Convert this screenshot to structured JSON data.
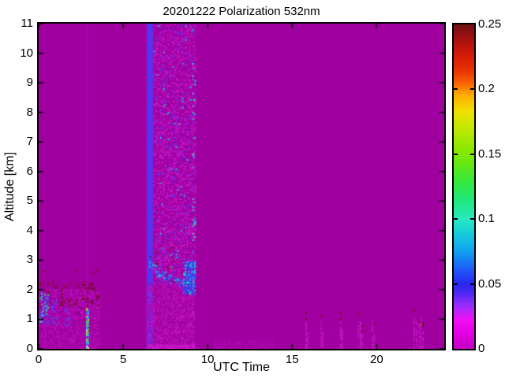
{
  "chart_data": {
    "type": "heatmap",
    "title": "20201222 Polarization 532nm",
    "xlabel": "UTC Time",
    "ylabel": "Altitude [km]",
    "x_range": [
      0,
      24
    ],
    "y_range": [
      0,
      11
    ],
    "x_tick_values": [
      0,
      5,
      10,
      15,
      20
    ],
    "x_tick_labels": [
      "0",
      "5",
      "10",
      "15",
      "20"
    ],
    "y_tick_values": [
      0,
      1,
      2,
      3,
      4,
      5,
      6,
      7,
      8,
      9,
      10,
      11
    ],
    "y_tick_labels": [
      "0",
      "1",
      "2",
      "3",
      "4",
      "5",
      "6",
      "7",
      "8",
      "9",
      "10",
      "11"
    ],
    "grid": false,
    "background_color": "#A000A0",
    "colorbar": {
      "range": [
        0,
        0.25
      ],
      "tick_values": [
        0,
        0.05,
        0.1,
        0.15,
        0.2,
        0.25
      ],
      "tick_labels": [
        "0",
        "0.05",
        "0.1",
        "0.15",
        "0.2",
        "0.25"
      ],
      "inner_tick_values": [
        0.05,
        0.1,
        0.15,
        0.2
      ],
      "stops": [
        [
          0.0,
          "#C400C4"
        ],
        [
          0.05,
          "#E400E4"
        ],
        [
          0.09,
          "#EE10F2"
        ],
        [
          0.13,
          "#A02CFC"
        ],
        [
          0.17,
          "#5028F4"
        ],
        [
          0.2,
          "#2828F0"
        ],
        [
          0.24,
          "#2054F8"
        ],
        [
          0.3,
          "#10A0F0"
        ],
        [
          0.36,
          "#18D0D8"
        ],
        [
          0.4,
          "#28E8C0"
        ],
        [
          0.46,
          "#20E878"
        ],
        [
          0.52,
          "#38E838"
        ],
        [
          0.6,
          "#80E800"
        ],
        [
          0.68,
          "#C0E800"
        ],
        [
          0.73,
          "#F0E000"
        ],
        [
          0.78,
          "#FFB000"
        ],
        [
          0.82,
          "#F86000"
        ],
        [
          0.86,
          "#E83000"
        ],
        [
          0.91,
          "#D01808"
        ],
        [
          0.96,
          "#A01010"
        ],
        [
          1.0,
          "#6E1212"
        ]
      ]
    },
    "features": [
      {
        "kind": "fill",
        "x": [
          0,
          24
        ],
        "y": [
          0,
          11
        ],
        "color": "#A000A0"
      },
      {
        "kind": "vband",
        "x": [
          2.79,
          2.85
        ],
        "y": [
          0,
          11
        ],
        "color": "#AE06AE"
      },
      {
        "kind": "vband",
        "x": [
          2.9,
          2.96
        ],
        "y": [
          0,
          11
        ],
        "color": "#AA04AA"
      },
      {
        "kind": "vband",
        "x": [
          2.33,
          2.4
        ],
        "y": [
          0,
          1.95
        ],
        "color": "#8E008E"
      },
      {
        "kind": "vband",
        "x": [
          2.47,
          2.52
        ],
        "y": [
          0,
          1.95
        ],
        "color": "#920092"
      },
      {
        "kind": "vband",
        "x": [
          5.86,
          5.91
        ],
        "y": [
          0,
          1.5
        ],
        "color": "#940094"
      },
      {
        "kind": "vband",
        "x": [
          5.98,
          6.02
        ],
        "y": [
          0,
          1.5
        ],
        "color": "#940094"
      },
      {
        "kind": "speckle",
        "x": [
          0.02,
          3.62
        ],
        "y": [
          0,
          2.02
        ],
        "density": 0.85,
        "cell": 2,
        "palette": [
          [
            "#AA06AA",
            0.45
          ],
          [
            "#B40CB4",
            0.3
          ],
          [
            "#9A029A",
            0.15
          ],
          [
            "#C014C0",
            0.1
          ]
        ]
      },
      {
        "kind": "speckle",
        "x": [
          0.05,
          3.58
        ],
        "y": [
          1.45,
          2.3
        ],
        "density": 0.1,
        "cell": 2,
        "palette": [
          [
            "#6E1010",
            0.6
          ],
          [
            "#8A1212",
            0.4
          ]
        ]
      },
      {
        "kind": "speckle",
        "x": [
          0.3,
          3.5
        ],
        "y": [
          2.3,
          2.7
        ],
        "density": 0.015,
        "cell": 2,
        "palette": [
          [
            "#6E1010",
            1
          ]
        ]
      },
      {
        "kind": "speckle",
        "x": [
          0.05,
          0.55
        ],
        "y": [
          0.85,
          1.9
        ],
        "density": 0.5,
        "cell": 2,
        "palette": [
          [
            "#5838F0",
            0.35
          ],
          [
            "#7C28E0",
            0.3
          ],
          [
            "#28C0D8",
            0.2
          ],
          [
            "#30E070",
            0.15
          ]
        ]
      },
      {
        "kind": "speckle",
        "x": [
          0.75,
          1.12
        ],
        "y": [
          0.8,
          1.65
        ],
        "density": 0.45,
        "cell": 2,
        "palette": [
          [
            "#6C30E8",
            0.5
          ],
          [
            "#9018D0",
            0.35
          ],
          [
            "#3858F0",
            0.15
          ]
        ]
      },
      {
        "kind": "speckle",
        "x": [
          1.5,
          1.8
        ],
        "y": [
          0.8,
          1.35
        ],
        "density": 0.3,
        "cell": 2,
        "palette": [
          [
            "#8822D8",
            0.6
          ],
          [
            "#5840F0",
            0.4
          ]
        ]
      },
      {
        "kind": "speckle",
        "x": [
          2.8,
          2.94
        ],
        "y": [
          0.02,
          1.38
        ],
        "density": 0.92,
        "cell": 2,
        "palette": [
          [
            "#14E0C8",
            0.28
          ],
          [
            "#3CE43C",
            0.22
          ],
          [
            "#E8E800",
            0.12
          ],
          [
            "#2496F8",
            0.2
          ],
          [
            "#B81CE8",
            0.1
          ],
          [
            "#F0F0F0",
            0.02
          ],
          [
            "#C814C8",
            0.04
          ]
        ]
      },
      {
        "kind": "streaks",
        "x": [
          6.35,
          6.8
        ],
        "y": [
          0,
          11
        ],
        "count": 16,
        "width": 2,
        "palette": [
          [
            "#4040F8",
            0.45
          ],
          [
            "#6C2CE8",
            0.3
          ],
          [
            "#9718D8",
            0.25
          ]
        ]
      },
      {
        "kind": "speckle",
        "x": [
          6.8,
          9.25
        ],
        "y": [
          2.15,
          11
        ],
        "density": 0.55,
        "cell": 2,
        "palette": [
          [
            "#B008B0",
            0.35
          ],
          [
            "#BC12BC",
            0.25
          ],
          [
            "#C81CC8",
            0.16
          ],
          [
            "#9614C8",
            0.1
          ],
          [
            "#7C24E0",
            0.07
          ],
          [
            "#5034EC",
            0.05
          ],
          [
            "#28B4D8",
            0.02
          ]
        ]
      },
      {
        "kind": "speckle",
        "x": [
          9.1,
          9.25
        ],
        "y": [
          2.2,
          11
        ],
        "density": 0.1,
        "cell": 2,
        "palette": [
          [
            "#20C8D0",
            0.5
          ],
          [
            "#30E0A0",
            0.3
          ],
          [
            "#4878F0",
            0.2
          ]
        ]
      },
      {
        "kind": "speckle",
        "x": [
          6.45,
          9.25
        ],
        "y": [
          0,
          2.2
        ],
        "density": 0.75,
        "cell": 2,
        "palette": [
          [
            "#B00AB0",
            0.45
          ],
          [
            "#BA12BA",
            0.3
          ],
          [
            "#A404A4",
            0.15
          ],
          [
            "#C81CC8",
            0.1
          ]
        ]
      },
      {
        "kind": "band",
        "path": [
          [
            6.45,
            3.0
          ],
          [
            7.5,
            2.6
          ],
          [
            8.4,
            2.35
          ],
          [
            9.22,
            2.15
          ]
        ],
        "thickness": 0.28,
        "density": 0.5,
        "cell": 2,
        "palette": [
          [
            "#3848F4",
            0.4
          ],
          [
            "#2C80F0",
            0.2
          ],
          [
            "#24C0D8",
            0.15
          ],
          [
            "#7C28E0",
            0.15
          ],
          [
            "#C414C4",
            0.1
          ]
        ]
      },
      {
        "kind": "speckle",
        "x": [
          8.55,
          9.22
        ],
        "y": [
          1.85,
          2.95
        ],
        "density": 0.8,
        "cell": 2,
        "palette": [
          [
            "#3040F4",
            0.45
          ],
          [
            "#2874F4",
            0.2
          ],
          [
            "#20B8E0",
            0.15
          ],
          [
            "#6C2CE8",
            0.12
          ],
          [
            "#18E0B0",
            0.08
          ]
        ]
      },
      {
        "kind": "speckle",
        "x": [
          6.5,
          8.3
        ],
        "y": [
          2.75,
          3.45
        ],
        "density": 0.05,
        "cell": 2,
        "palette": [
          [
            "#6E1010",
            0.5
          ],
          [
            "#9A0E0E",
            0.3
          ],
          [
            "#C81CC8",
            0.2
          ]
        ]
      },
      {
        "kind": "speckle",
        "x": [
          6.45,
          9.25
        ],
        "y": [
          0,
          0.14
        ],
        "density": 0.9,
        "cell": 2,
        "palette": [
          [
            "#C616C6",
            0.7
          ],
          [
            "#D020D0",
            0.3
          ]
        ]
      },
      {
        "kind": "speckle",
        "x": [
          10.4,
          13.9
        ],
        "y": [
          0,
          0.3
        ],
        "density": 0.5,
        "cell": 2,
        "palette": [
          [
            "#AC06AC",
            0.7
          ],
          [
            "#B40CB4",
            0.3
          ]
        ]
      },
      {
        "kind": "spikes",
        "cell": 2,
        "density": 0.7,
        "dot_density": 0.18,
        "dot_extent": 0.35,
        "color_palette": [
          [
            "#BE12BE",
            0.6
          ],
          [
            "#C81CC8",
            0.4
          ]
        ],
        "dot_palette": [
          [
            "#6E1010",
            0.7
          ],
          [
            "#8A1212",
            0.3
          ]
        ],
        "items": [
          [
            15.78,
            0.9
          ],
          [
            15.88,
            0.55
          ],
          [
            16.68,
            0.95
          ],
          [
            16.78,
            0.6
          ],
          [
            17.82,
            1.0
          ],
          [
            17.92,
            0.7
          ],
          [
            18.88,
            0.95
          ],
          [
            19.0,
            0.9
          ],
          [
            19.12,
            0.5
          ],
          [
            19.7,
            0.95
          ],
          [
            19.82,
            0.65
          ],
          [
            22.18,
            1.05
          ],
          [
            22.32,
            0.95
          ],
          [
            22.48,
            0.85
          ],
          [
            22.58,
            1.1
          ],
          [
            22.7,
            0.6
          ]
        ]
      }
    ]
  }
}
